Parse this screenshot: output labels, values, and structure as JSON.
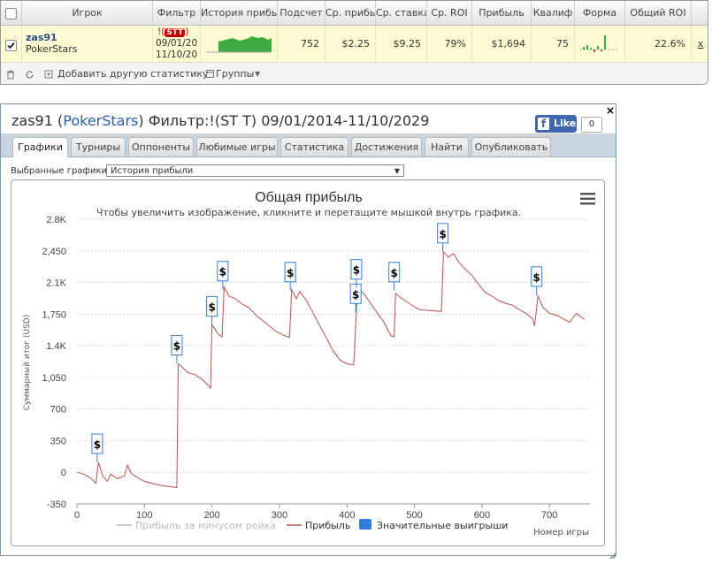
{
  "table": {
    "headers": [
      "Игрок",
      "Фильтр",
      "История прибы",
      "Подсчет",
      "Ср. прибы",
      "Ср. ставка",
      "Ср. ROI",
      "Прибыль",
      "Квалиф",
      "Форма",
      "Общий ROI"
    ],
    "row": {
      "checked": true,
      "player": "zas91",
      "site": "PokerStars",
      "filter_badge": "STT",
      "filter_prefix": "!(",
      "filter_suffix": ")",
      "filter_from": "09/01/20",
      "filter_to": "11/10/20",
      "count": "752",
      "avg_profit": "$2.25",
      "avg_stake": "$9.25",
      "avg_roi": "79%",
      "profit": "$1,694",
      "qualif": "75",
      "total_roi": "22.6%",
      "remove": "x"
    },
    "footer": {
      "add_stat": "Добавить другую статистику",
      "groups": "Группы"
    }
  },
  "popup": {
    "title_player": "zas91",
    "title_site": "PokerStars",
    "title_paren_open": "(",
    "title_paren_close": ")",
    "title_filter": "Фильтр:!(ST T) 09/01/2014-11/10/2029",
    "like_label": "Like",
    "like_count": "0",
    "close": "×",
    "tabs": [
      "Графики",
      "Турниры",
      "Оппоненты",
      "Любимые игры",
      "Статистика",
      "Достижения",
      "Найти",
      "Опубликовать"
    ],
    "active_tab": 0,
    "chart_select_label": "Выбранные графики:",
    "chart_select_value": "История прибыли"
  },
  "colors": {
    "profit_line": "#b7514f",
    "rake_line": "#c8c8c8",
    "big_wins": "#2f7ed8",
    "accent": "#2a5fa9"
  },
  "chart_data": {
    "type": "line",
    "title": "Общая прибыль",
    "subtitle": "Чтобы увеличить изображение, кликните и перетащите мышкой внутрь графика.",
    "xlabel": "Номер игры",
    "ylabel": "Суммарный итог (USD)",
    "xlim": [
      0,
      760
    ],
    "ylim": [
      -350,
      2800
    ],
    "x_ticks": [
      "0",
      "100",
      "200",
      "300",
      "400",
      "500",
      "600",
      "700"
    ],
    "y_ticks": [
      "2.8K",
      "2,450",
      "2.1K",
      "1,750",
      "1.4K",
      "1,050",
      "700",
      "350",
      "0",
      "-350"
    ],
    "legend": [
      "Прибыль за минусом рейка",
      "Прибыль",
      "Значительные выигрыши"
    ],
    "series": [
      {
        "name": "Прибыль",
        "points": [
          [
            0,
            0
          ],
          [
            10,
            -20
          ],
          [
            20,
            -60
          ],
          [
            28,
            -120
          ],
          [
            32,
            110
          ],
          [
            38,
            -40
          ],
          [
            45,
            -100
          ],
          [
            50,
            -20
          ],
          [
            60,
            -70
          ],
          [
            70,
            -40
          ],
          [
            75,
            80
          ],
          [
            80,
            -10
          ],
          [
            90,
            -60
          ],
          [
            100,
            -100
          ],
          [
            110,
            -120
          ],
          [
            120,
            -140
          ],
          [
            130,
            -150
          ],
          [
            140,
            -160
          ],
          [
            148,
            -170
          ],
          [
            150,
            1200
          ],
          [
            155,
            1170
          ],
          [
            165,
            1100
          ],
          [
            175,
            1080
          ],
          [
            185,
            1030
          ],
          [
            195,
            960
          ],
          [
            198,
            930
          ],
          [
            200,
            1630
          ],
          [
            205,
            1580
          ],
          [
            210,
            1520
          ],
          [
            215,
            1500
          ],
          [
            218,
            2050
          ],
          [
            225,
            1950
          ],
          [
            235,
            1920
          ],
          [
            245,
            1860
          ],
          [
            255,
            1820
          ],
          [
            265,
            1740
          ],
          [
            275,
            1680
          ],
          [
            285,
            1620
          ],
          [
            295,
            1560
          ],
          [
            305,
            1520
          ],
          [
            315,
            1490
          ],
          [
            318,
            2020
          ],
          [
            325,
            1920
          ],
          [
            330,
            2000
          ],
          [
            340,
            1900
          ],
          [
            350,
            1760
          ],
          [
            360,
            1620
          ],
          [
            370,
            1480
          ],
          [
            380,
            1340
          ],
          [
            390,
            1240
          ],
          [
            400,
            1200
          ],
          [
            410,
            1190
          ],
          [
            414,
            1780
          ],
          [
            416,
            2040
          ],
          [
            425,
            1980
          ],
          [
            435,
            1870
          ],
          [
            445,
            1760
          ],
          [
            455,
            1660
          ],
          [
            465,
            1510
          ],
          [
            470,
            1500
          ],
          [
            472,
            1980
          ],
          [
            480,
            1930
          ],
          [
            490,
            1880
          ],
          [
            500,
            1830
          ],
          [
            508,
            1800
          ],
          [
            540,
            1780
          ],
          [
            543,
            2440
          ],
          [
            550,
            2380
          ],
          [
            558,
            2420
          ],
          [
            565,
            2330
          ],
          [
            575,
            2250
          ],
          [
            585,
            2180
          ],
          [
            595,
            2080
          ],
          [
            605,
            1990
          ],
          [
            615,
            1950
          ],
          [
            625,
            1900
          ],
          [
            635,
            1870
          ],
          [
            645,
            1850
          ],
          [
            655,
            1800
          ],
          [
            665,
            1760
          ],
          [
            675,
            1700
          ],
          [
            678,
            1620
          ],
          [
            683,
            1950
          ],
          [
            690,
            1830
          ],
          [
            700,
            1760
          ],
          [
            710,
            1740
          ],
          [
            720,
            1700
          ],
          [
            730,
            1660
          ],
          [
            740,
            1760
          ],
          [
            750,
            1700
          ],
          [
            752,
            1694
          ]
        ]
      }
    ],
    "big_wins": [
      {
        "x": 30,
        "y": 110
      },
      {
        "x": 148,
        "y": 1200
      },
      {
        "x": 200,
        "y": 1630
      },
      {
        "x": 216,
        "y": 2020
      },
      {
        "x": 316,
        "y": 2010
      },
      {
        "x": 413,
        "y": 1770
      },
      {
        "x": 414,
        "y": 2040
      },
      {
        "x": 470,
        "y": 2010
      },
      {
        "x": 542,
        "y": 2440
      },
      {
        "x": 681,
        "y": 1960
      }
    ],
    "marker_label": "$",
    "grid": true,
    "legend_position": "bottom"
  }
}
